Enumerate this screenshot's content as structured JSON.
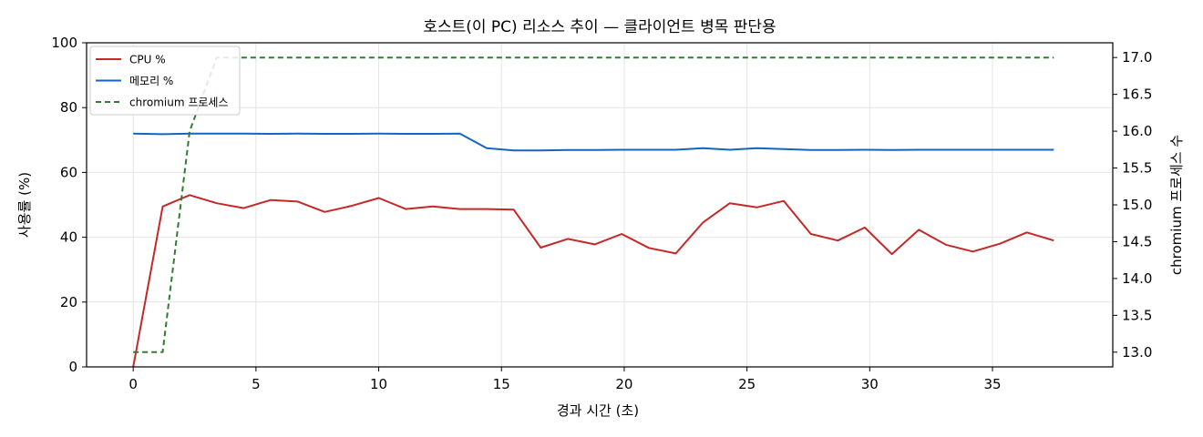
{
  "chart_data": {
    "type": "line",
    "title": "호스트(이 PC) 리소스 추이 — 클라이언트 병목 판단용",
    "xlabel": "경과 시간 (초)",
    "ylabel": "사용률 (%)",
    "y2label": "chromium 프로세스 수",
    "xlim": [
      -1.9,
      39.9
    ],
    "ylim": [
      0,
      100
    ],
    "y2lim": [
      12.8,
      17.2
    ],
    "xticks": [
      0,
      5,
      10,
      15,
      20,
      25,
      30,
      35
    ],
    "yticks": [
      0,
      20,
      40,
      60,
      80,
      100
    ],
    "y2ticks": [
      "13.0",
      "13.5",
      "14.0",
      "14.5",
      "15.0",
      "15.5",
      "16.0",
      "16.5",
      "17.0"
    ],
    "grid": true,
    "legend_position": "top-left",
    "x": [
      0,
      1.2,
      2.3,
      3.4,
      4.5,
      5.6,
      6.7,
      7.8,
      8.9,
      10.0,
      11.1,
      12.2,
      13.3,
      14.4,
      15.5,
      16.6,
      17.7,
      18.8,
      19.9,
      21.0,
      22.1,
      23.2,
      24.3,
      25.4,
      26.5,
      27.6,
      28.7,
      29.8,
      30.9,
      32.0,
      33.1,
      34.2,
      35.3,
      36.4,
      37.5
    ],
    "series": [
      {
        "name": "CPU %",
        "axis": "left",
        "color": "#c62828",
        "style": "solid",
        "values": [
          0,
          49.5,
          53,
          50.5,
          49,
          51.5,
          51,
          47.8,
          49.7,
          52.1,
          48.7,
          49.5,
          48.7,
          48.7,
          48.5,
          36.8,
          39.5,
          37.8,
          41,
          36.7,
          35,
          44.5,
          50.5,
          49.2,
          51.2,
          41,
          39,
          43,
          34.8,
          42.3,
          37.7,
          35.6,
          38,
          41.5,
          39
        ]
      },
      {
        "name": "메모리 %",
        "axis": "left",
        "color": "#1565c0",
        "style": "solid",
        "values": [
          72,
          71.8,
          72,
          72,
          72,
          71.9,
          72,
          71.9,
          71.9,
          72,
          71.9,
          71.9,
          72,
          67.5,
          66.8,
          66.8,
          66.9,
          66.9,
          67,
          67,
          67,
          67.5,
          67,
          67.5,
          67.2,
          66.9,
          66.9,
          67,
          66.9,
          67,
          67,
          67,
          67,
          67,
          67
        ]
      },
      {
        "name": "chromium 프로세스",
        "axis": "right",
        "color": "#2e7d32",
        "style": "dashed",
        "values": [
          13,
          13,
          16,
          17,
          17,
          17,
          17,
          17,
          17,
          17,
          17,
          17,
          17,
          17,
          17,
          17,
          17,
          17,
          17,
          17,
          17,
          17,
          17,
          17,
          17,
          17,
          17,
          17,
          17,
          17,
          17,
          17,
          17,
          17,
          17
        ]
      }
    ]
  }
}
